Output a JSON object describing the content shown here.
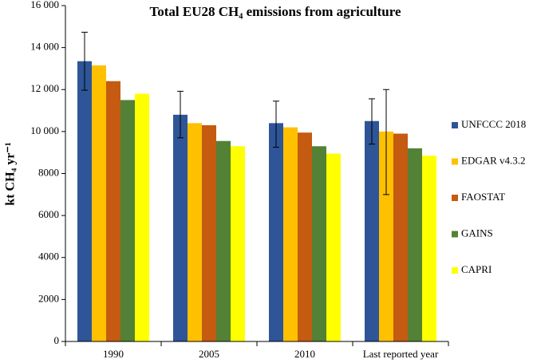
{
  "chart_data": {
    "type": "bar",
    "title": "Total EU28 CH₄ emissions  from agriculture",
    "y_label": "kt CH₄ yr⁻¹",
    "categories": [
      "1990",
      "2005",
      "2010",
      "Last reported year"
    ],
    "series": [
      {
        "name": "UNFCCC 2018",
        "color": "#2e5597",
        "values": [
          13350,
          10800,
          10400,
          10500
        ],
        "error_minus": [
          1380,
          1100,
          1150,
          1100
        ],
        "error_plus": [
          1380,
          1120,
          1050,
          1060
        ]
      },
      {
        "name": "EDGAR v4.3.2",
        "color": "#ffc000",
        "values": [
          13150,
          10400,
          10200,
          10000
        ],
        "error_minus": [
          null,
          null,
          null,
          3000
        ],
        "error_plus": [
          null,
          null,
          null,
          2000
        ]
      },
      {
        "name": "FAOSTAT",
        "color": "#c55a11",
        "values": [
          12400,
          10300,
          9950,
          9900
        ]
      },
      {
        "name": "GAINS",
        "color": "#538135",
        "values": [
          11500,
          9550,
          9300,
          9200
        ]
      },
      {
        "name": "CAPRI",
        "color": "#ffff00",
        "values": [
          11800,
          9300,
          8950,
          8850
        ]
      }
    ],
    "ylim": [
      0,
      16000
    ],
    "yticks": [
      0,
      2000,
      4000,
      6000,
      8000,
      {
        "value": 10000,
        "label": "10 000"
      },
      {
        "value": 12000,
        "label": "12 000"
      },
      {
        "value": 14000,
        "label": "14 000"
      },
      {
        "value": 16000,
        "label": "16 000"
      }
    ],
    "grid": false,
    "legend": "right"
  }
}
